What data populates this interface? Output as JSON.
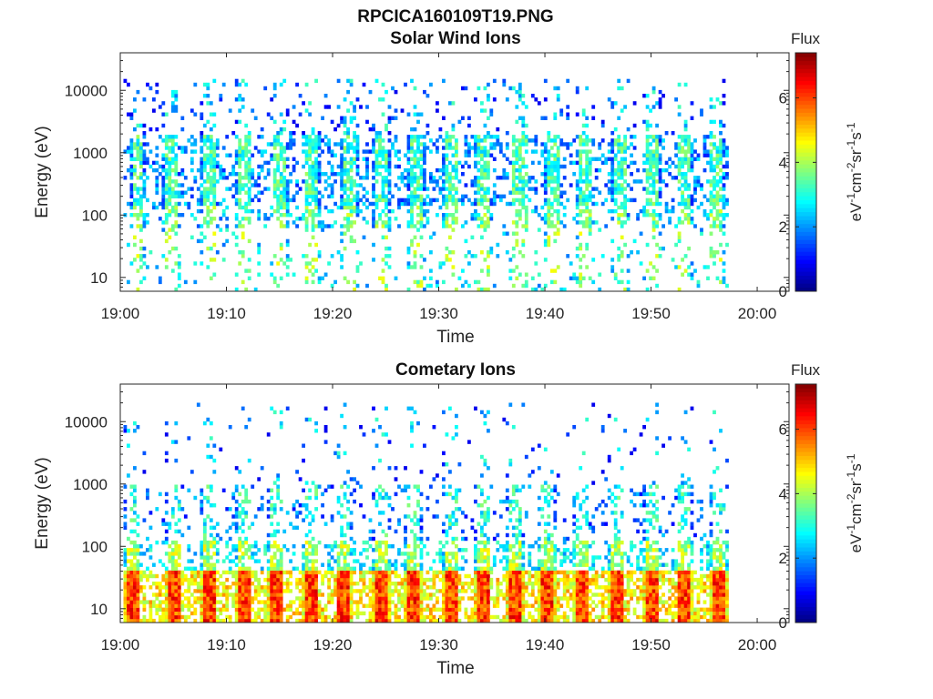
{
  "figure": {
    "file_title": "RPCICA160109T19.PNG"
  },
  "colormap": {
    "name": "jet",
    "stops": [
      "#00007f",
      "#0000ff",
      "#007fff",
      "#00ffff",
      "#7fff7f",
      "#ffff00",
      "#ff7f00",
      "#ff0000",
      "#7f0000"
    ]
  },
  "chart_data": [
    {
      "type": "heatmap",
      "title": "Solar Wind Ions",
      "xlabel": "Time",
      "ylabel": "Energy (eV)",
      "y_scale": "log",
      "xlim": [
        "19:00",
        "20:03"
      ],
      "ylim": [
        6,
        40000
      ],
      "x_ticks": [
        "19:00",
        "19:10",
        "19:20",
        "19:30",
        "19:40",
        "19:50",
        "20:00"
      ],
      "y_ticks": [
        "10",
        "100",
        "1000",
        "10000"
      ],
      "data_time_range": [
        "19:00",
        "19:57"
      ],
      "colorbar": {
        "title": "Flux",
        "label": "eV-1cm-2sr-1s-1",
        "ticks": [
          "0",
          "2",
          "4",
          "6"
        ],
        "range": [
          0,
          7.4
        ]
      },
      "sweep_times_min": [
        1.5,
        4.5,
        8.2,
        11.5,
        15.0,
        18.0,
        21.5,
        24.5,
        27.8,
        31.0,
        34.0,
        37.5,
        40.5,
        43.5,
        46.8,
        50.0,
        53.0,
        56.0
      ],
      "bands": [
        {
          "energy_range_eV": [
            6,
            60
          ],
          "typical_flux": 2.8,
          "density": 0.12
        },
        {
          "energy_range_eV": [
            60,
            150
          ],
          "typical_flux": 2.6,
          "density": 0.35
        },
        {
          "energy_range_eV": [
            150,
            2000
          ],
          "typical_flux": 2.2,
          "density": 0.45
        },
        {
          "energy_range_eV": [
            2000,
            15000
          ],
          "typical_flux": 1.6,
          "density": 0.12
        }
      ]
    },
    {
      "type": "heatmap",
      "title": "Cometary Ions",
      "xlabel": "Time",
      "ylabel": "Energy (eV)",
      "y_scale": "log",
      "xlim": [
        "19:00",
        "20:03"
      ],
      "ylim": [
        6,
        40000
      ],
      "x_ticks": [
        "19:00",
        "19:10",
        "19:20",
        "19:30",
        "19:40",
        "19:50",
        "20:00"
      ],
      "y_ticks": [
        "10",
        "100",
        "1000",
        "10000"
      ],
      "data_time_range": [
        "19:00",
        "19:57"
      ],
      "colorbar": {
        "title": "Flux",
        "label": "eV-1cm-2sr-1s-1",
        "ticks": [
          "0",
          "2",
          "4",
          "6"
        ],
        "range": [
          0,
          7.4
        ]
      },
      "sweep_times_min": [
        1.0,
        4.8,
        8.2,
        11.5,
        14.5,
        17.8,
        21.0,
        24.5,
        27.5,
        31.0,
        34.0,
        37.0,
        40.0,
        43.2,
        46.5,
        49.8,
        53.0,
        56.2
      ],
      "bands": [
        {
          "energy_range_eV": [
            6,
            40
          ],
          "typical_flux": 5.0,
          "density": 0.95
        },
        {
          "energy_range_eV": [
            40,
            120
          ],
          "typical_flux": 3.0,
          "density": 0.45
        },
        {
          "energy_range_eV": [
            120,
            1000
          ],
          "typical_flux": 2.0,
          "density": 0.2
        },
        {
          "energy_range_eV": [
            1000,
            20000
          ],
          "typical_flux": 1.5,
          "density": 0.04
        }
      ]
    }
  ]
}
